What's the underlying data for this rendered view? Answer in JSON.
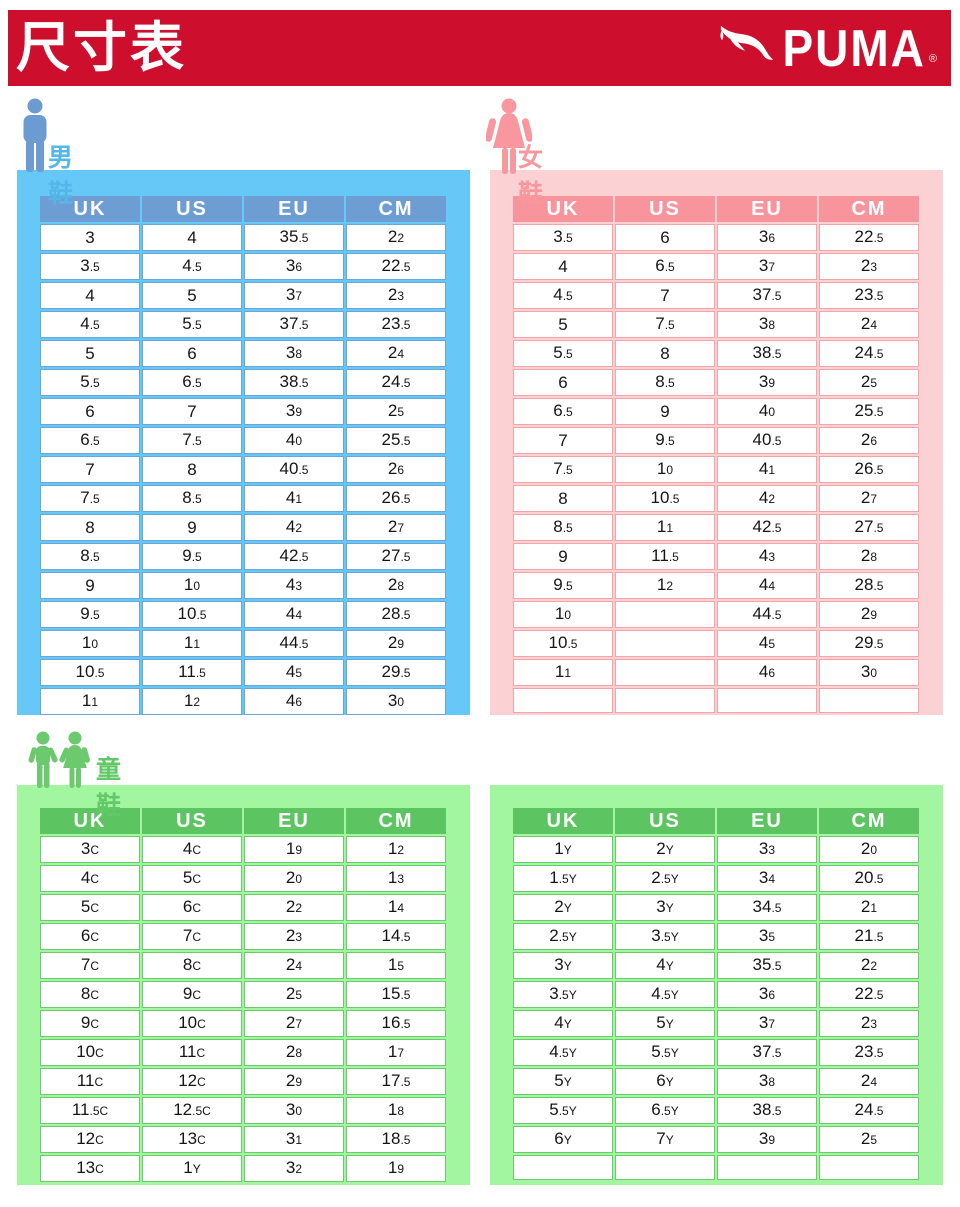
{
  "header": {
    "title": "尺寸表",
    "brand": "PUMA",
    "registered": "®"
  },
  "colors": {
    "brand_red": "#CE0E2D",
    "men": {
      "panel": "#66C8F6",
      "header": "#6E9DD3",
      "border": "#69A7DB",
      "accent": "#54B7EA",
      "icon": "#6C9BD2"
    },
    "women": {
      "panel": "#FBD1D4",
      "header": "#F8959C",
      "border": "#F4A3A8",
      "accent": "#F8989E",
      "icon": "#F8989E"
    },
    "kids": {
      "panel": "#A2F6A0",
      "header": "#5CC561",
      "border": "#6CC96E",
      "accent": "#62C868",
      "icon": "#6CC96E"
    }
  },
  "sections": {
    "men": {
      "label": "男鞋",
      "table": {
        "headers": [
          "UK",
          "US",
          "EU",
          "CM"
        ],
        "rows": [
          [
            "3",
            "4",
            "35.5",
            "22"
          ],
          [
            "3.5",
            "4.5",
            "36",
            "22.5"
          ],
          [
            "4",
            "5",
            "37",
            "23"
          ],
          [
            "4.5",
            "5.5",
            "37.5",
            "23.5"
          ],
          [
            "5",
            "6",
            "38",
            "24"
          ],
          [
            "5.5",
            "6.5",
            "38.5",
            "24.5"
          ],
          [
            "6",
            "7",
            "39",
            "25"
          ],
          [
            "6.5",
            "7.5",
            "40",
            "25.5"
          ],
          [
            "7",
            "8",
            "40.5",
            "26"
          ],
          [
            "7.5",
            "8.5",
            "41",
            "26.5"
          ],
          [
            "8",
            "9",
            "42",
            "27"
          ],
          [
            "8.5",
            "9.5",
            "42.5",
            "27.5"
          ],
          [
            "9",
            "10",
            "43",
            "28"
          ],
          [
            "9.5",
            "10.5",
            "44",
            "28.5"
          ],
          [
            "10",
            "11",
            "44.5",
            "29"
          ],
          [
            "10.5",
            "11.5",
            "45",
            "29.5"
          ],
          [
            "11",
            "12",
            "46",
            "30"
          ]
        ]
      }
    },
    "women": {
      "label": "女鞋",
      "table": {
        "headers": [
          "UK",
          "US",
          "EU",
          "CM"
        ],
        "rows": [
          [
            "3.5",
            "6",
            "36",
            "22.5"
          ],
          [
            "4",
            "6.5",
            "37",
            "23"
          ],
          [
            "4.5",
            "7",
            "37.5",
            "23.5"
          ],
          [
            "5",
            "7.5",
            "38",
            "24"
          ],
          [
            "5.5",
            "8",
            "38.5",
            "24.5"
          ],
          [
            "6",
            "8.5",
            "39",
            "25"
          ],
          [
            "6.5",
            "9",
            "40",
            "25.5"
          ],
          [
            "7",
            "9.5",
            "40.5",
            "26"
          ],
          [
            "7.5",
            "10",
            "41",
            "26.5"
          ],
          [
            "8",
            "10.5",
            "42",
            "27"
          ],
          [
            "8.5",
            "11",
            "42.5",
            "27.5"
          ],
          [
            "9",
            "11.5",
            "43",
            "28"
          ],
          [
            "9.5",
            "12",
            "44",
            "28.5"
          ],
          [
            "10",
            "",
            "44.5",
            "29"
          ],
          [
            "10.5",
            "",
            "45",
            "29.5"
          ],
          [
            "11",
            "",
            "46",
            "30"
          ],
          [
            "",
            "",
            "",
            ""
          ]
        ]
      }
    },
    "kids": {
      "label": "童鞋",
      "table_c": {
        "headers": [
          "UK",
          "US",
          "EU",
          "CM"
        ],
        "rows": [
          [
            "3C",
            "4C",
            "19",
            "12"
          ],
          [
            "4C",
            "5C",
            "20",
            "13"
          ],
          [
            "5C",
            "6C",
            "22",
            "14"
          ],
          [
            "6C",
            "7C",
            "23",
            "14.5"
          ],
          [
            "7C",
            "8C",
            "24",
            "15"
          ],
          [
            "8C",
            "9C",
            "25",
            "15.5"
          ],
          [
            "9C",
            "10C",
            "27",
            "16.5"
          ],
          [
            "10C",
            "11C",
            "28",
            "17"
          ],
          [
            "11C",
            "12C",
            "29",
            "17.5"
          ],
          [
            "11.5C",
            "12.5C",
            "30",
            "18"
          ],
          [
            "12C",
            "13C",
            "31",
            "18.5"
          ],
          [
            "13C",
            "1Y",
            "32",
            "19"
          ]
        ]
      },
      "table_y": {
        "headers": [
          "UK",
          "US",
          "EU",
          "CM"
        ],
        "rows": [
          [
            "1Y",
            "2Y",
            "33",
            "20"
          ],
          [
            "1.5Y",
            "2.5Y",
            "34",
            "20.5"
          ],
          [
            "2Y",
            "3Y",
            "34.5",
            "21"
          ],
          [
            "2.5Y",
            "3.5Y",
            "35",
            "21.5"
          ],
          [
            "3Y",
            "4Y",
            "35.5",
            "22"
          ],
          [
            "3.5Y",
            "4.5Y",
            "36",
            "22.5"
          ],
          [
            "4Y",
            "5Y",
            "37",
            "23"
          ],
          [
            "4.5Y",
            "5.5Y",
            "37.5",
            "23.5"
          ],
          [
            "5Y",
            "6Y",
            "38",
            "24"
          ],
          [
            "5.5Y",
            "6.5Y",
            "38.5",
            "24.5"
          ],
          [
            "6Y",
            "7Y",
            "39",
            "25"
          ],
          [
            "",
            "",
            "",
            ""
          ]
        ]
      }
    }
  }
}
